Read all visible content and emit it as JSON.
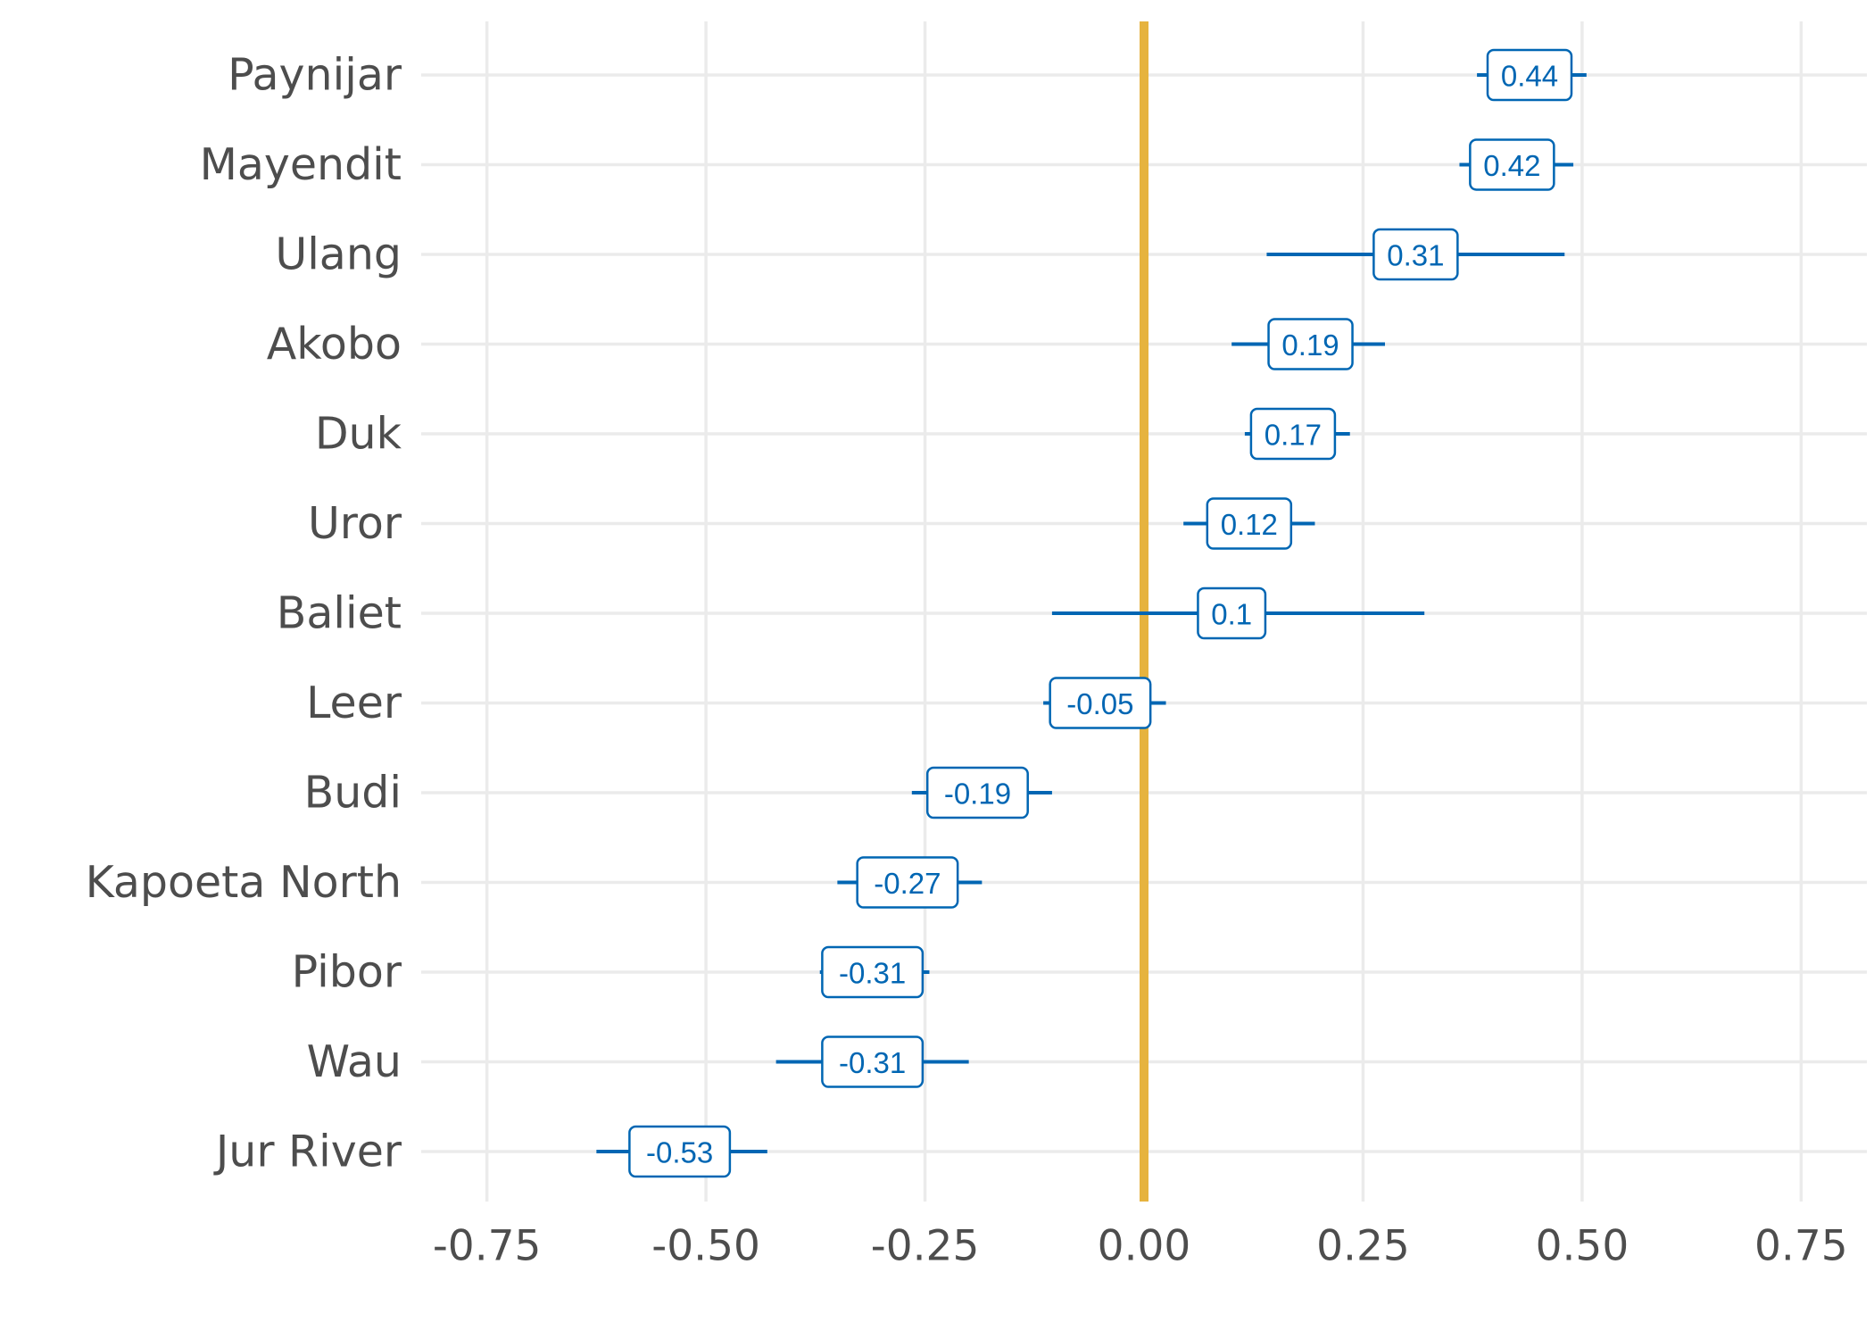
{
  "chart_data": {
    "type": "error-bar",
    "title": "",
    "xlabel": "",
    "ylabel": "",
    "xlim": [
      -0.825,
      0.825
    ],
    "x_ticks": [
      -0.75,
      -0.5,
      -0.25,
      0.0,
      0.25,
      0.5,
      0.75
    ],
    "x_tick_labels": [
      "-0.75",
      "-0.50",
      "-0.25",
      "0.00",
      "0.25",
      "0.50",
      "0.75"
    ],
    "reference_line": 0,
    "grid": true,
    "legend": "none",
    "colors": {
      "series": "#0066b3",
      "reference": "#e6b33e",
      "grid": "#ebebeb",
      "text": "#4d4d4d"
    },
    "categories": [
      "Paynijar",
      "Mayendit",
      "Ulang",
      "Akobo",
      "Duk",
      "Uror",
      "Baliet",
      "Leer",
      "Budi",
      "Kapoeta North",
      "Pibor",
      "Wau",
      "Jur River"
    ],
    "values": [
      0.44,
      0.42,
      0.31,
      0.19,
      0.17,
      0.12,
      0.1,
      -0.05,
      -0.19,
      -0.27,
      -0.31,
      -0.31,
      -0.53
    ],
    "value_labels": [
      "0.44",
      "0.42",
      "0.31",
      "0.19",
      "0.17",
      "0.12",
      "0.1",
      "-0.05",
      "-0.19",
      "-0.27",
      "-0.31",
      "-0.31",
      "-0.53"
    ],
    "lower": [
      0.38,
      0.36,
      0.14,
      0.1,
      0.115,
      0.045,
      -0.105,
      -0.115,
      -0.265,
      -0.35,
      -0.37,
      -0.42,
      -0.625
    ],
    "upper": [
      0.505,
      0.49,
      0.48,
      0.275,
      0.235,
      0.195,
      0.32,
      0.025,
      -0.105,
      -0.185,
      -0.245,
      -0.2,
      -0.43
    ]
  }
}
